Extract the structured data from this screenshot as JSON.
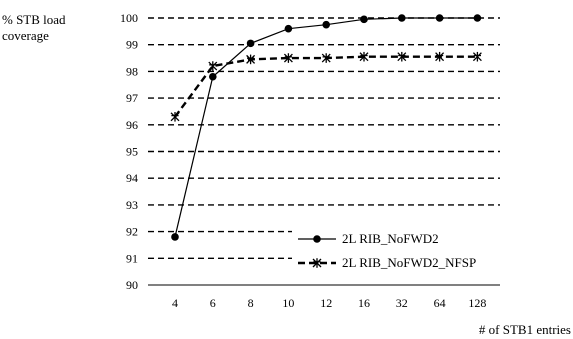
{
  "chart_data": {
    "type": "line",
    "ylabel_lines": [
      "% STB load",
      "coverage"
    ],
    "xlabel": "# of STB1 entries",
    "categories": [
      "4",
      "6",
      "8",
      "10",
      "12",
      "16",
      "32",
      "64",
      "128"
    ],
    "ylim": [
      90,
      100
    ],
    "yticks": [
      90,
      91,
      92,
      93,
      94,
      95,
      96,
      97,
      98,
      99,
      100
    ],
    "grid": "horizontal dashed",
    "legend_position": "bottom-right",
    "series": [
      {
        "name": "2L RIB_NoFWD2",
        "marker": "circle",
        "line_style": "solid",
        "values": [
          91.8,
          97.8,
          99.05,
          99.6,
          99.75,
          99.95,
          100,
          100,
          100
        ]
      },
      {
        "name": "2L RIB_NoFWD2_NFSP",
        "marker": "asterisk",
        "line_style": "dashed",
        "values": [
          96.3,
          98.2,
          98.45,
          98.5,
          98.5,
          98.55,
          98.55,
          98.55,
          98.55
        ]
      }
    ]
  }
}
